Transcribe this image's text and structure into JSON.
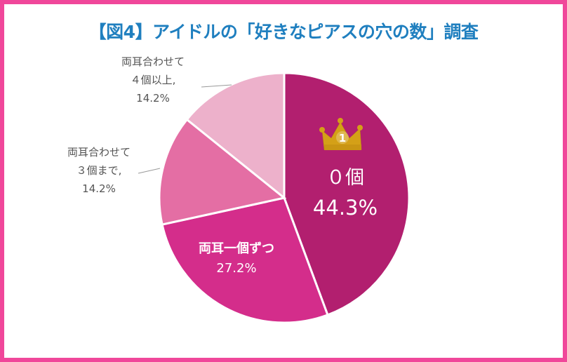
{
  "title": "【図4】アイドルの「好きなピアスの穴の数」調査",
  "colors": {
    "frame": "#f0479a",
    "title": "#1f7fbf",
    "crown": "#d4a017",
    "leader": "#999999"
  },
  "chart_data": {
    "type": "pie",
    "title": "【図4】アイドルの「好きなピアスの穴の数」調査",
    "start": "12 o'clock",
    "direction": "clockwise",
    "slices": [
      {
        "key": "zero",
        "label": "０個",
        "value_label": "44.3%",
        "value": 44.3,
        "color": "#b21f6f",
        "label_lines": [
          "０個"
        ],
        "badge": "crown-rank-1"
      },
      {
        "key": "one_each",
        "label": "両耳一個ずつ",
        "value_label": "27.2%",
        "value": 27.2,
        "color": "#d42d8b",
        "label_lines": [
          "両耳一個ずつ"
        ]
      },
      {
        "key": "three",
        "label": "両耳合わせて３個まで,",
        "value_label": "14.2%",
        "value": 14.2,
        "color": "#e46ea4",
        "label_lines": [
          "両耳合わせて",
          "３個まで,"
        ]
      },
      {
        "key": "four",
        "label": "両耳合わせて４個以上,",
        "value_label": "14.2%",
        "value": 14.2,
        "color": "#edb1cb",
        "label_lines": [
          "両耳合わせて",
          "４個以上,"
        ]
      }
    ],
    "rank_badge_text": "1"
  }
}
